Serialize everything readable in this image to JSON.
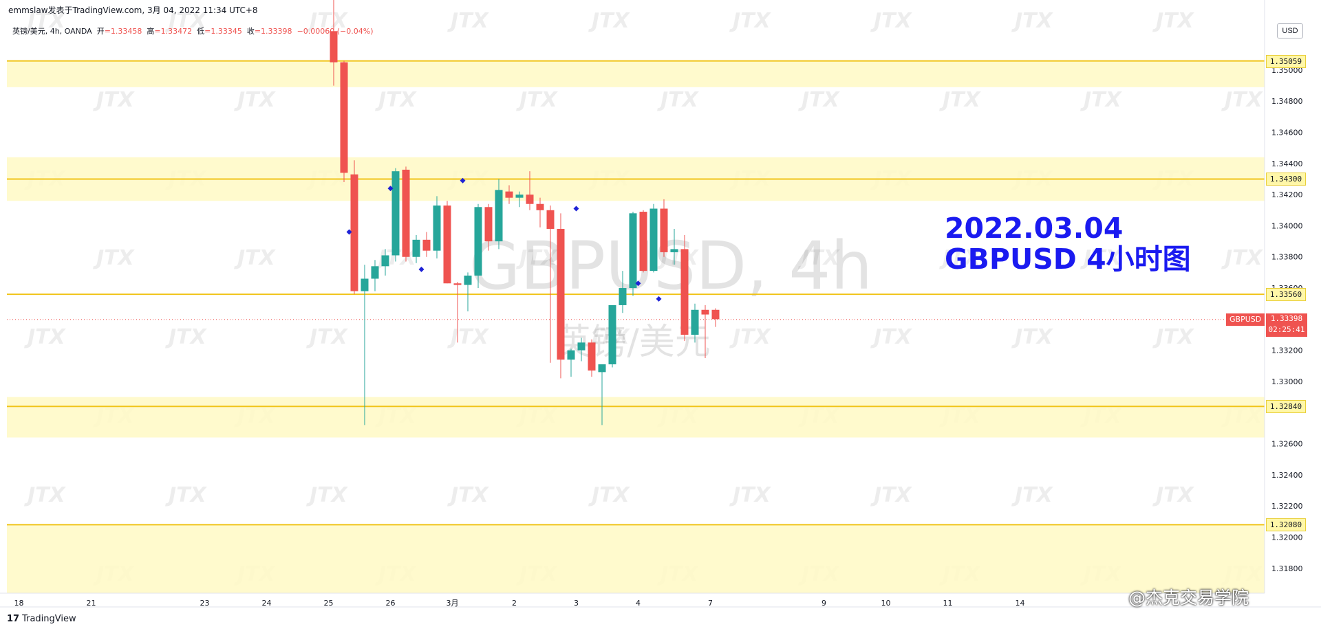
{
  "header": {
    "publisher": "emmslaw发表于TradingView.com, 3月 04, 2022 11:34 UTC+8",
    "symbol_line": "英镑/美元, 4h, OANDA",
    "open_label": "开",
    "open": "=1.33458",
    "high_label": "高",
    "high": "=1.33472",
    "low_label": "低",
    "low": "=1.33345",
    "close_label": "收",
    "close": "=1.33398",
    "change": "−0.00060 (−0.04%)"
  },
  "currency": "USD",
  "watermark": {
    "symbol": "GBPUSD, 4h",
    "name": "英镑/美元",
    "brand": "JTX"
  },
  "annotation": {
    "line1": "2022.03.04",
    "line2": "GBPUSD 4小时图"
  },
  "footer": {
    "logo": "17",
    "brand": "TradingView",
    "credit": "@杰克交易学院"
  },
  "colors": {
    "up": "#26a69a",
    "down": "#ef5350",
    "zone": "#fff9c4",
    "zone_line": "#f0c419",
    "marker": "#1e22d6",
    "annotation": "#1a1af0"
  },
  "current_price": {
    "symbol": "GBPUSD",
    "price": "1.33398",
    "countdown": "02:25:41"
  },
  "chart_data": {
    "type": "candlestick",
    "title": "GBPUSD, 4h",
    "ylim": [
      1.3164,
      1.3545
    ],
    "y_ticks": [
      "1.35000",
      "1.34800",
      "1.34600",
      "1.34400",
      "1.34200",
      "1.34000",
      "1.33800",
      "1.33600",
      "1.33200",
      "1.33000",
      "1.32600",
      "1.32400",
      "1.32200",
      "1.32000",
      "1.31800"
    ],
    "x_ticks": [
      {
        "label": "18",
        "i": -30.5
      },
      {
        "label": "21",
        "i": -23.5
      },
      {
        "label": "23",
        "i": -12.5
      },
      {
        "label": "24",
        "i": -6.5
      },
      {
        "label": "25",
        "i": -0.5
      },
      {
        "label": "26",
        "i": 5.5
      },
      {
        "label": "3月",
        "i": 11.5
      },
      {
        "label": "2",
        "i": 17.5
      },
      {
        "label": "3",
        "i": 23.5
      },
      {
        "label": "4",
        "i": 29.5
      },
      {
        "label": "7",
        "i": 36.5
      },
      {
        "label": "9",
        "i": 47.5
      },
      {
        "label": "10",
        "i": 53.5
      },
      {
        "label": "11",
        "i": 59.5
      },
      {
        "label": "14",
        "i": 66.5
      }
    ],
    "levels": [
      {
        "label": "1.35059",
        "price": 1.35059,
        "zone": [
          1.3489,
          1.35059
        ]
      },
      {
        "label": "1.34300",
        "price": 1.343,
        "zone": [
          1.3416,
          1.3444
        ]
      },
      {
        "label": "1.33560",
        "price": 1.3356,
        "zone": null
      },
      {
        "label": "1.32840",
        "price": 1.3284,
        "zone": [
          1.3264,
          1.329
        ]
      },
      {
        "label": "1.32080",
        "price": 1.3208,
        "zone": [
          1.3164,
          1.3208
        ]
      }
    ],
    "markers": [
      {
        "i": 1.5,
        "price": 1.3396
      },
      {
        "i": 5.5,
        "price": 1.3424
      },
      {
        "i": 8.5,
        "price": 1.3372
      },
      {
        "i": 12.5,
        "price": 1.3429
      },
      {
        "i": 23.5,
        "price": 1.3411
      },
      {
        "i": 29.5,
        "price": 1.3363
      },
      {
        "i": 31.5,
        "price": 1.3353
      }
    ],
    "candles": [
      {
        "o": 1.3525,
        "h": 1.355,
        "l": 1.349,
        "c": 1.3505
      },
      {
        "o": 1.3505,
        "h": 1.3506,
        "l": 1.3428,
        "c": 1.3434
      },
      {
        "o": 1.3433,
        "h": 1.3442,
        "l": 1.3356,
        "c": 1.3358
      },
      {
        "o": 1.3358,
        "h": 1.3375,
        "l": 1.3272,
        "c": 1.3366
      },
      {
        "o": 1.3366,
        "h": 1.3378,
        "l": 1.3358,
        "c": 1.3374
      },
      {
        "o": 1.3374,
        "h": 1.3385,
        "l": 1.3368,
        "c": 1.3381
      },
      {
        "o": 1.3381,
        "h": 1.3437,
        "l": 1.3377,
        "c": 1.3435
      },
      {
        "o": 1.3436,
        "h": 1.3438,
        "l": 1.3377,
        "c": 1.338
      },
      {
        "o": 1.338,
        "h": 1.3394,
        "l": 1.3376,
        "c": 1.3391
      },
      {
        "o": 1.3391,
        "h": 1.3396,
        "l": 1.338,
        "c": 1.3384
      },
      {
        "o": 1.3384,
        "h": 1.3419,
        "l": 1.3379,
        "c": 1.3413
      },
      {
        "o": 1.3413,
        "h": 1.3416,
        "l": 1.3363,
        "c": 1.3363
      },
      {
        "o": 1.3363,
        "h": 1.3364,
        "l": 1.3325,
        "c": 1.3362
      },
      {
        "o": 1.3362,
        "h": 1.337,
        "l": 1.3345,
        "c": 1.3368
      },
      {
        "o": 1.3368,
        "h": 1.3414,
        "l": 1.336,
        "c": 1.3412
      },
      {
        "o": 1.3412,
        "h": 1.3414,
        "l": 1.3384,
        "c": 1.339
      },
      {
        "o": 1.339,
        "h": 1.343,
        "l": 1.3385,
        "c": 1.3423
      },
      {
        "o": 1.3422,
        "h": 1.3426,
        "l": 1.3414,
        "c": 1.3418
      },
      {
        "o": 1.3418,
        "h": 1.3422,
        "l": 1.3412,
        "c": 1.342
      },
      {
        "o": 1.342,
        "h": 1.3435,
        "l": 1.341,
        "c": 1.3414
      },
      {
        "o": 1.3414,
        "h": 1.3418,
        "l": 1.3399,
        "c": 1.341
      },
      {
        "o": 1.341,
        "h": 1.3413,
        "l": 1.3312,
        "c": 1.3398
      },
      {
        "o": 1.3398,
        "h": 1.3408,
        "l": 1.3302,
        "c": 1.3314
      },
      {
        "o": 1.3314,
        "h": 1.3321,
        "l": 1.3303,
        "c": 1.332
      },
      {
        "o": 1.332,
        "h": 1.3328,
        "l": 1.3313,
        "c": 1.3325
      },
      {
        "o": 1.3325,
        "h": 1.3327,
        "l": 1.3303,
        "c": 1.3307
      },
      {
        "o": 1.3306,
        "h": 1.3308,
        "l": 1.3272,
        "c": 1.3311
      },
      {
        "o": 1.3311,
        "h": 1.3349,
        "l": 1.3309,
        "c": 1.3349
      },
      {
        "o": 1.3349,
        "h": 1.3371,
        "l": 1.3344,
        "c": 1.336
      },
      {
        "o": 1.336,
        "h": 1.3409,
        "l": 1.3355,
        "c": 1.3408
      },
      {
        "o": 1.3409,
        "h": 1.341,
        "l": 1.337,
        "c": 1.3371
      },
      {
        "o": 1.3371,
        "h": 1.3414,
        "l": 1.337,
        "c": 1.3411
      },
      {
        "o": 1.3411,
        "h": 1.3417,
        "l": 1.338,
        "c": 1.3383
      },
      {
        "o": 1.3383,
        "h": 1.3398,
        "l": 1.3375,
        "c": 1.3385
      },
      {
        "o": 1.3385,
        "h": 1.3394,
        "l": 1.3326,
        "c": 1.333
      },
      {
        "o": 1.333,
        "h": 1.335,
        "l": 1.3325,
        "c": 1.3346
      },
      {
        "o": 1.3346,
        "h": 1.3349,
        "l": 1.3315,
        "c": 1.3343
      },
      {
        "o": 1.3346,
        "h": 1.3347,
        "l": 1.3335,
        "c": 1.334
      }
    ]
  }
}
